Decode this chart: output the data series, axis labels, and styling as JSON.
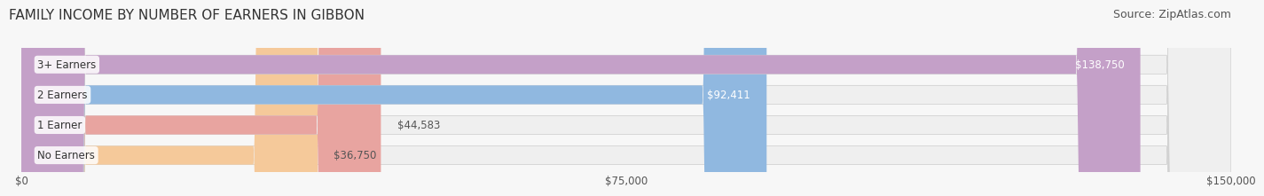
{
  "title": "FAMILY INCOME BY NUMBER OF EARNERS IN GIBBON",
  "source": "Source: ZipAtlas.com",
  "categories": [
    "No Earners",
    "1 Earner",
    "2 Earners",
    "3+ Earners"
  ],
  "values": [
    36750,
    44583,
    92411,
    138750
  ],
  "bar_colors": [
    "#f5c99a",
    "#e8a4a0",
    "#90b8e0",
    "#c4a0c8"
  ],
  "label_colors": [
    "#b07830",
    "#c06060",
    "#ffffff",
    "#ffffff"
  ],
  "bar_bg_color": "#f0f0f0",
  "xlim": [
    0,
    150000
  ],
  "xticks": [
    0,
    75000,
    150000
  ],
  "xtick_labels": [
    "$0",
    "$75,000",
    "$150,000"
  ],
  "background_color": "#f7f7f7",
  "title_fontsize": 11,
  "source_fontsize": 9,
  "bar_height": 0.62,
  "bar_gap": 0.15
}
